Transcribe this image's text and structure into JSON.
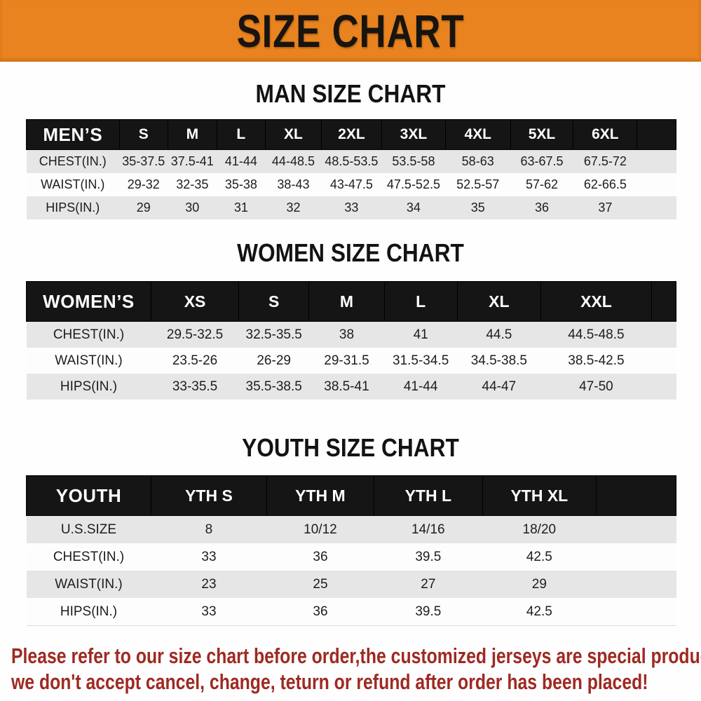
{
  "banner": {
    "title": "SIZE CHART",
    "bg_color": "#e8831f",
    "text_color": "#181410"
  },
  "colors": {
    "table_header_bg": "#151515",
    "table_header_text": "#ffffff",
    "stripe_row_bg": "#e6e6e6",
    "notice_text": "#9e2a22"
  },
  "chart_data": [
    {
      "type": "table",
      "title": "MAN SIZE CHART",
      "header": [
        "MEN’S",
        "S",
        "M",
        "L",
        "XL",
        "2XL",
        "3XL",
        "4XL",
        "5XL",
        "6XL"
      ],
      "rows": [
        [
          "CHEST(IN.)",
          "35-37.5",
          "37.5-41",
          "41-44",
          "44-48.5",
          "48.5-53.5",
          "53.5-58",
          "58-63",
          "63-67.5",
          "67.5-72"
        ],
        [
          "WAIST(IN.)",
          "29-32",
          "32-35",
          "35-38",
          "38-43",
          "43-47.5",
          "47.5-52.5",
          "52.5-57",
          "57-62",
          "62-66.5"
        ],
        [
          "HIPS(IN.)",
          "29",
          "30",
          "31",
          "32",
          "33",
          "34",
          "35",
          "36",
          "37"
        ]
      ]
    },
    {
      "type": "table",
      "title": "WOMEN SIZE CHART",
      "header": [
        "WOMEN’S",
        "XS",
        "S",
        "M",
        "L",
        "XL",
        "XXL"
      ],
      "rows": [
        [
          "CHEST(IN.)",
          "29.5-32.5",
          "32.5-35.5",
          "38",
          "41",
          "44.5",
          "44.5-48.5"
        ],
        [
          "WAIST(IN.)",
          "23.5-26",
          "26-29",
          "29-31.5",
          "31.5-34.5",
          "34.5-38.5",
          "38.5-42.5"
        ],
        [
          "HIPS(IN.)",
          "33-35.5",
          "35.5-38.5",
          "38.5-41",
          "41-44",
          "44-47",
          "47-50"
        ]
      ]
    },
    {
      "type": "table",
      "title": "YOUTH SIZE CHART",
      "header": [
        "YOUTH",
        "YTH S",
        "YTH M",
        "YTH L",
        "YTH XL"
      ],
      "rows": [
        [
          "U.S.SIZE",
          "8",
          "10/12",
          "14/16",
          "18/20"
        ],
        [
          "CHEST(IN.)",
          "33",
          "36",
          "39.5",
          "42.5"
        ],
        [
          "WAIST(IN.)",
          "23",
          "25",
          "27",
          "29"
        ],
        [
          "HIPS(IN.)",
          "33",
          "36",
          "39.5",
          "42.5"
        ]
      ]
    }
  ],
  "notice": {
    "line1": "Please refer to our size chart before order,the customized jerseys are special products,",
    "line2": "we don't accept cancel, change, teturn or refund after order has been placed!"
  }
}
